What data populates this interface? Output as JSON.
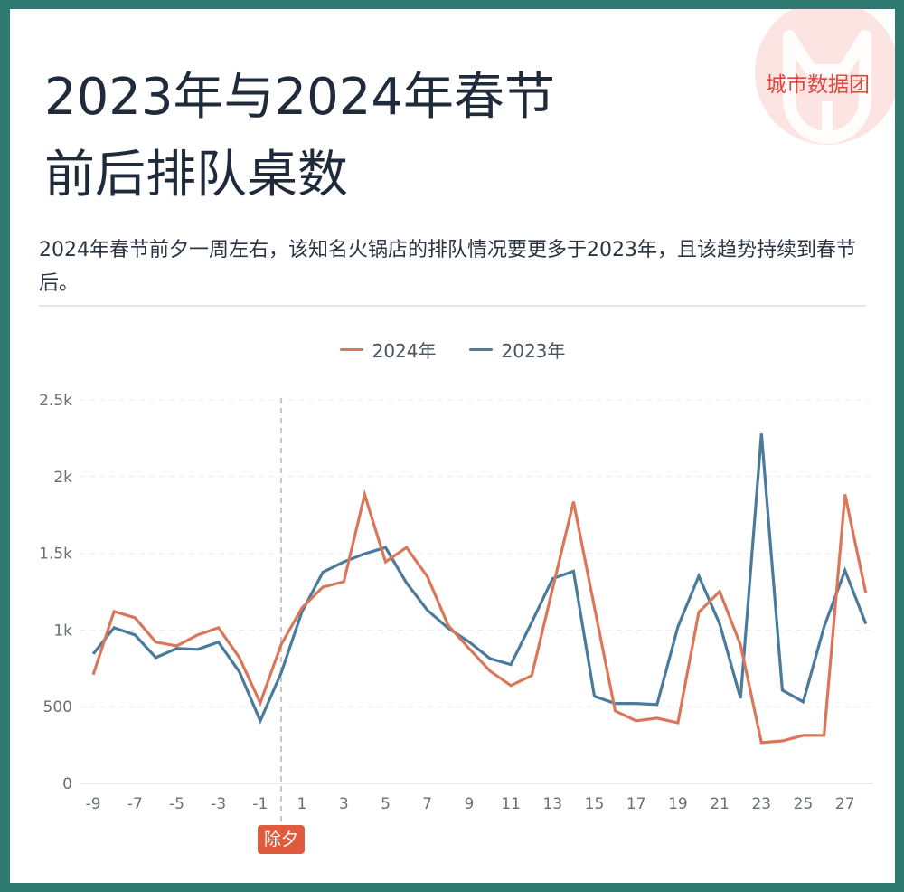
{
  "title": {
    "line1": "2023年与2024年春节",
    "line2": "前后排队桌数"
  },
  "subtitle": "2024年春节前夕一周左右，该知名火锅店的排队情况要更多于2023年，且该趋势持续到春节后。",
  "watermark": {
    "text": "城市数据团",
    "color": "#e0463d"
  },
  "colors": {
    "frame": "#2f7a70",
    "series_2024": "#d9775a",
    "series_2023": "#4a7b9d",
    "badge": "#e05a3e",
    "grid": "#ececec",
    "axis": "#e3e3e3",
    "dashed_marker": "#c8c8c8"
  },
  "legend": [
    {
      "label": "2024年",
      "color": "#d9775a"
    },
    {
      "label": "2023年",
      "color": "#4a7b9d"
    }
  ],
  "marker": {
    "x": 0,
    "label": "除夕"
  },
  "chart_data": {
    "type": "line",
    "title": "2023年与2024年春节前后排队桌数",
    "xlabel": "",
    "ylabel": "",
    "x": [
      -9,
      -8,
      -7,
      -6,
      -5,
      -4,
      -3,
      -2,
      -1,
      0,
      1,
      2,
      3,
      4,
      5,
      6,
      7,
      8,
      9,
      10,
      11,
      12,
      13,
      14,
      15,
      16,
      17,
      18,
      19,
      20,
      21,
      22,
      23,
      24,
      25,
      26,
      27,
      28
    ],
    "series": [
      {
        "name": "2024年",
        "color": "#d9775a",
        "values": [
          709,
          1121,
          1080,
          921,
          897,
          968,
          1015,
          820,
          525,
          905,
          1145,
          1280,
          1315,
          1882,
          1444,
          1538,
          1349,
          1030,
          880,
          733,
          638,
          703,
          1270,
          1836,
          1150,
          472,
          408,
          425,
          395,
          1116,
          1251,
          903,
          266,
          277,
          313,
          313,
          1884,
          1240
        ]
      },
      {
        "name": "2023年",
        "color": "#4a7b9d",
        "values": [
          845,
          1015,
          968,
          820,
          880,
          874,
          921,
          727,
          408,
          720,
          1120,
          1377,
          1444,
          1497,
          1538,
          1308,
          1130,
          1012,
          923,
          814,
          775,
          1050,
          1335,
          1383,
          568,
          521,
          521,
          514,
          1021,
          1352,
          1040,
          555,
          2280,
          608,
          532,
          1021,
          1388,
          1040
        ]
      }
    ],
    "xticks": [
      "-9",
      "-7",
      "-5",
      "-3",
      "-1",
      "1",
      "3",
      "5",
      "7",
      "9",
      "11",
      "13",
      "15",
      "17",
      "19",
      "21",
      "23",
      "25",
      "27"
    ],
    "xtick_values": [
      -9,
      -7,
      -5,
      -3,
      -1,
      1,
      3,
      5,
      7,
      9,
      11,
      13,
      15,
      17,
      19,
      21,
      23,
      25,
      27
    ],
    "yticks": [
      "0",
      "500",
      "1k",
      "1.5k",
      "2k",
      "2.5k"
    ],
    "ytick_values": [
      0,
      500,
      1000,
      1500,
      2000,
      2500
    ],
    "ylim": [
      0,
      2500
    ],
    "xlim": [
      -9,
      28
    ],
    "grid": true,
    "legend_position": "top-center",
    "annotations": [
      {
        "x": 0,
        "text": "除夕",
        "style": "dashed vertical line"
      }
    ]
  }
}
